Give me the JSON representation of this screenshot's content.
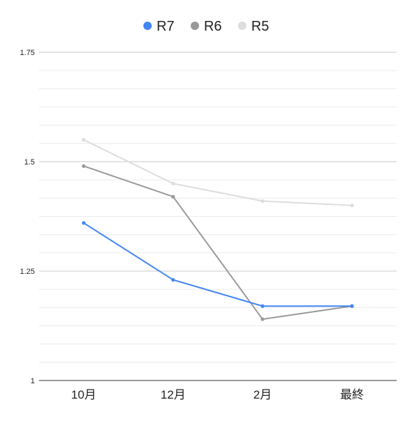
{
  "chart_data": {
    "type": "line",
    "title": "",
    "xlabel": "",
    "ylabel": "",
    "categories": [
      "10月",
      "12月",
      "2月",
      "最終"
    ],
    "ylim": [
      1,
      1.75
    ],
    "yticks": [
      "1.75",
      "1.5",
      "1.25",
      "1"
    ],
    "ytick_values": [
      1.75,
      1.5,
      1.25,
      1
    ],
    "minor_gridlines": true,
    "legend": "top-center",
    "series": [
      {
        "name": "R7",
        "color": "#4285f4",
        "values": [
          1.36,
          1.23,
          1.17,
          1.17
        ]
      },
      {
        "name": "R6",
        "color": "#999999",
        "values": [
          1.49,
          1.42,
          1.14,
          1.17
        ]
      },
      {
        "name": "R5",
        "color": "#dddddd",
        "values": [
          1.55,
          1.45,
          1.41,
          1.4
        ]
      }
    ]
  }
}
